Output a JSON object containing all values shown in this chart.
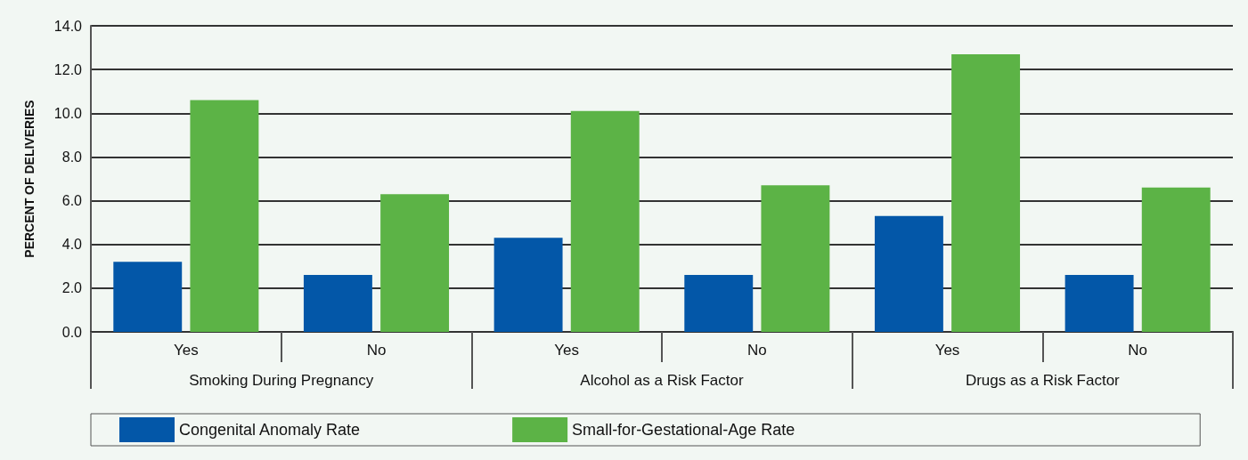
{
  "chart_data": {
    "type": "bar",
    "ylabel": "PERCENT OF DELIVERIES",
    "categories": [
      "Yes",
      "No",
      "Yes",
      "No",
      "Yes",
      "No"
    ],
    "series": [
      {
        "name": "Congenital Anomaly Rate",
        "color": "#0357a8",
        "values": [
          3.2,
          2.6,
          4.3,
          2.6,
          5.3,
          2.6
        ]
      },
      {
        "name": "Small-for-Gestational-Age Rate",
        "color": "#5cb346",
        "values": [
          10.6,
          6.3,
          10.1,
          6.7,
          12.7,
          6.6
        ]
      }
    ],
    "annotations": [
      "Smoking During Pregnancy",
      "Alcohol as a Risk Factor",
      "Drugs as a Risk Factor"
    ],
    "ylim": [
      0,
      14
    ],
    "yticks": [
      {
        "value": 0,
        "label": "0.0"
      },
      {
        "value": 2,
        "label": "2.0"
      },
      {
        "value": 4,
        "label": "4.0"
      },
      {
        "value": 6,
        "label": "6.0"
      },
      {
        "value": 8,
        "label": "8.0"
      },
      {
        "value": 10,
        "label": "10.0"
      },
      {
        "value": 12,
        "label": "12.0"
      },
      {
        "value": 14,
        "label": "14.0"
      }
    ],
    "grid": "y",
    "legend": "bottom"
  }
}
